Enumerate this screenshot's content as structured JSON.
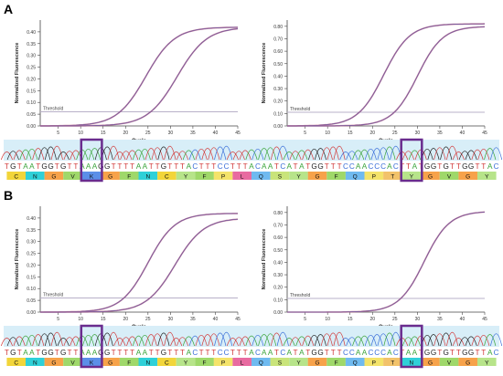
{
  "colors": {
    "curve_purple": "#7a5c9e",
    "curve_pink": "#c06a8a",
    "threshold_line": "#b8b0c8",
    "highlight_box": "#6a2c8e",
    "trace_band": "#d8eef8",
    "base_T": "#d23b3b",
    "base_A": "#3aa43a",
    "base_G": "#222222",
    "base_C": "#3a6ed8"
  },
  "panels": [
    {
      "label": "A",
      "sequence": "TGTAATGGTGTTAAAGGTTTTAATTGTTTACTTTCCTTTACAATCATATGGTTTCCAACCCACTTATGGTGTTGGTTAC",
      "aa": [
        "C",
        "N",
        "G",
        "V",
        "K",
        "G",
        "F",
        "N",
        "C",
        "Y",
        "F",
        "P",
        "L",
        "Q",
        "S",
        "Y",
        "G",
        "F",
        "Q",
        "P",
        "T",
        "Y",
        "G",
        "V",
        "G",
        "Y"
      ],
      "highlight_aa_index": [
        4,
        21
      ],
      "charts": [
        {
          "ylabel": "Normalized Fluorescence",
          "xlabel": "Cycle",
          "threshold_label": "Threshold",
          "threshold": 0.06,
          "ylim": [
            0,
            0.45
          ],
          "yticks": [
            "0.00",
            "0.05",
            "0.10",
            "0.15",
            "0.20",
            "0.25",
            "0.30",
            "0.35",
            "0.40"
          ],
          "xticks": [
            "5",
            "10",
            "15",
            "20",
            "25",
            "30",
            "35",
            "40",
            "45"
          ],
          "xlim": [
            1,
            45
          ],
          "series": [
            {
              "plateau": 0.42,
              "midpoint": 24.5,
              "slope": 3.2
            },
            {
              "plateau": 0.42,
              "midpoint": 31.5,
              "slope": 3.3
            }
          ]
        },
        {
          "ylabel": "Normalized Fluorescence",
          "xlabel": "Cycle",
          "threshold_label": "Threshold",
          "threshold": 0.11,
          "ylim": [
            0,
            0.85
          ],
          "yticks": [
            "0.00",
            "0.10",
            "0.20",
            "0.30",
            "0.40",
            "0.50",
            "0.60",
            "0.70",
            "0.80"
          ],
          "xticks": [
            "5",
            "10",
            "15",
            "20",
            "25",
            "30",
            "35",
            "40",
            "45"
          ],
          "xlim": [
            1,
            45
          ],
          "series": [
            {
              "plateau": 0.82,
              "midpoint": 22.5,
              "slope": 2.9
            },
            {
              "plateau": 0.8,
              "midpoint": 30.0,
              "slope": 2.8
            }
          ]
        }
      ]
    },
    {
      "label": "B",
      "sequence": "TGTAATGGTGTTAAAGGTTTTAATTGTTTACTTTCCTTTACAATCATATGGTTTCCAACCCACTAATGGTGTTGGTTAC",
      "aa": [
        "C",
        "N",
        "G",
        "V",
        "K",
        "G",
        "F",
        "N",
        "C",
        "Y",
        "F",
        "P",
        "L",
        "Q",
        "S",
        "Y",
        "G",
        "F",
        "Q",
        "P",
        "T",
        "N",
        "G",
        "V",
        "G",
        "Y"
      ],
      "highlight_aa_index": [
        4,
        21
      ],
      "charts": [
        {
          "ylabel": "Normalized Fluorescence",
          "xlabel": "Cycle",
          "threshold_label": "Threshold",
          "threshold": 0.06,
          "ylim": [
            0,
            0.45
          ],
          "yticks": [
            "0.00",
            "0.05",
            "0.10",
            "0.15",
            "0.20",
            "0.25",
            "0.30",
            "0.35",
            "0.40"
          ],
          "xticks": [
            "5",
            "10",
            "15",
            "20",
            "25",
            "30",
            "35",
            "40",
            "45"
          ],
          "xlim": [
            1,
            45
          ],
          "series": [
            {
              "plateau": 0.42,
              "midpoint": 25.0,
              "slope": 3.0
            },
            {
              "plateau": 0.4,
              "midpoint": 31.0,
              "slope": 3.2
            }
          ]
        },
        {
          "ylabel": "Normalized Fluorescence",
          "xlabel": "Cycle",
          "threshold_label": "Threshold",
          "threshold": 0.11,
          "ylim": [
            0,
            0.85
          ],
          "yticks": [
            "0.00",
            "0.10",
            "0.20",
            "0.30",
            "0.40",
            "0.50",
            "0.60",
            "0.70",
            "0.80"
          ],
          "xticks": [
            "5",
            "10",
            "15",
            "20",
            "25",
            "30",
            "35",
            "40",
            "45"
          ],
          "xlim": [
            1,
            45
          ],
          "series": [
            {
              "plateau": 0.81,
              "midpoint": 31.5,
              "slope": 2.8
            }
          ]
        }
      ]
    }
  ],
  "chart_data": [
    {
      "type": "line",
      "panel": "A",
      "xlabel": "Cycle",
      "ylabel": "Normalized Fluorescence",
      "ylim": [
        0,
        0.45
      ],
      "threshold": 0.06,
      "x": [
        5,
        10,
        15,
        20,
        25,
        30,
        35,
        40,
        45
      ],
      "series": [
        {
          "values": [
            0.0,
            0.0,
            0.01,
            0.07,
            0.23,
            0.37,
            0.41,
            0.42,
            0.42
          ]
        },
        {
          "values": [
            0.0,
            0.0,
            0.0,
            0.0,
            0.03,
            0.15,
            0.33,
            0.4,
            0.42
          ]
        }
      ]
    },
    {
      "type": "line",
      "panel": "A",
      "xlabel": "Cycle",
      "ylabel": "Normalized Fluorescence",
      "ylim": [
        0,
        0.85
      ],
      "threshold": 0.11,
      "x": [
        5,
        10,
        15,
        20,
        25,
        30,
        35,
        40,
        45
      ],
      "series": [
        {
          "values": [
            0.0,
            0.0,
            0.02,
            0.25,
            0.63,
            0.79,
            0.82,
            0.82,
            0.82
          ]
        },
        {
          "values": [
            0.0,
            0.0,
            0.0,
            0.01,
            0.08,
            0.4,
            0.72,
            0.79,
            0.8
          ]
        }
      ]
    },
    {
      "type": "line",
      "panel": "B",
      "xlabel": "Cycle",
      "ylabel": "Normalized Fluorescence",
      "ylim": [
        0,
        0.45
      ],
      "threshold": 0.06,
      "x": [
        5,
        10,
        15,
        20,
        25,
        30,
        35,
        40,
        45
      ],
      "series": [
        {
          "values": [
            0.0,
            0.0,
            0.01,
            0.05,
            0.21,
            0.38,
            0.41,
            0.42,
            0.42
          ]
        },
        {
          "values": [
            0.0,
            0.0,
            0.0,
            0.0,
            0.04,
            0.17,
            0.33,
            0.39,
            0.4
          ]
        }
      ]
    },
    {
      "type": "line",
      "panel": "B",
      "xlabel": "Cycle",
      "ylabel": "Normalized Fluorescence",
      "ylim": [
        0,
        0.85
      ],
      "threshold": 0.11,
      "x": [
        5,
        10,
        15,
        20,
        25,
        30,
        35,
        40,
        45
      ],
      "series": [
        {
          "values": [
            0.0,
            0.0,
            0.0,
            0.0,
            0.04,
            0.31,
            0.69,
            0.79,
            0.81
          ]
        }
      ]
    }
  ]
}
